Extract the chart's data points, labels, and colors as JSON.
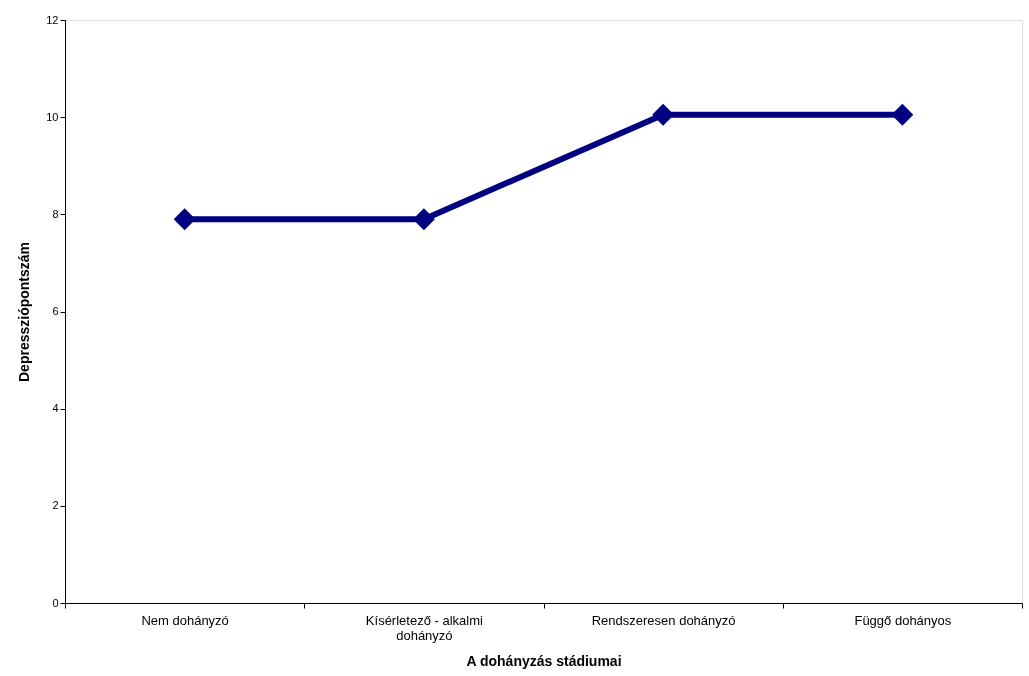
{
  "chart_data": {
    "type": "line",
    "xlabel": "A dohányzás stádiumai",
    "ylabel": "Depressziópontszám",
    "categories": [
      "Nem dohányzó",
      "Kísérletező - alkalmi dohányzó",
      "Rendszeresen dohányzó",
      "Függő dohányos"
    ],
    "series": [
      {
        "color": "#000080",
        "values": [
          7.9,
          7.9,
          10.05,
          10.05
        ]
      }
    ],
    "ylim": [
      0,
      12
    ],
    "yticks": [
      0,
      2,
      4,
      6,
      8,
      10,
      12
    ],
    "grid": false,
    "marker": "diamond",
    "line_style": "solid"
  }
}
